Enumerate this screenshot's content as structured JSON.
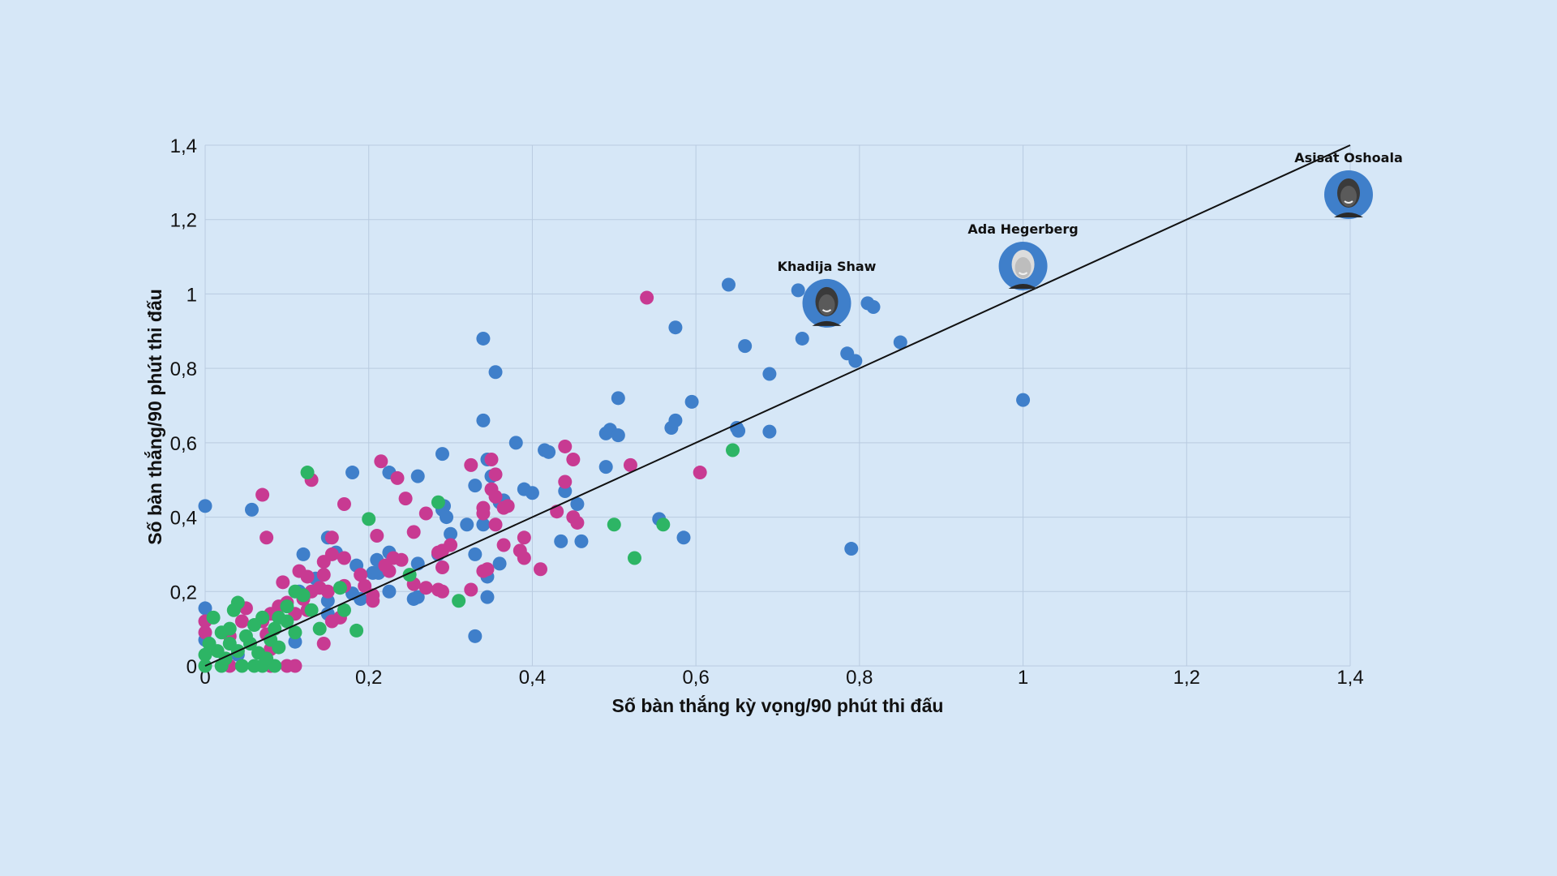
{
  "chart_data": {
    "type": "scatter",
    "title": "",
    "xlabel": "Số bàn thắng kỳ vọng/90 phút thi đấu",
    "ylabel": "Số bàn thắng/90 phút thi đấu",
    "xlim": [
      0,
      1.4
    ],
    "ylim": [
      0,
      1.4
    ],
    "grid": true,
    "x_ticks": [
      "0",
      "0,2",
      "0,4",
      "0,6",
      "0,8",
      "1",
      "1,2",
      "1,4"
    ],
    "y_ticks": [
      "0",
      "0,2",
      "0,4",
      "0,6",
      "0,8",
      "1",
      "1,2",
      "1,4"
    ],
    "reference_line": {
      "from": [
        0,
        0
      ],
      "to": [
        1.4,
        1.4
      ],
      "color": "#111111"
    },
    "colors": {
      "blue": "#3f7fca",
      "magenta": "#c83a92",
      "green": "#2db565",
      "background": "#d6e7f7",
      "grid": "#b9cbe0"
    },
    "series": [
      {
        "name": "blue",
        "color": "#3f7fca",
        "points": [
          [
            0,
            0.43
          ],
          [
            0.057,
            0.42
          ],
          [
            0,
            0.155
          ],
          [
            0.18,
            0.52
          ],
          [
            0.225,
            0.52
          ],
          [
            0.26,
            0.51
          ],
          [
            0.29,
            0.57
          ],
          [
            0.34,
            0.88
          ],
          [
            0.355,
            0.79
          ],
          [
            0.34,
            0.66
          ],
          [
            0.345,
            0.555
          ],
          [
            0.35,
            0.51
          ],
          [
            0.33,
            0.485
          ],
          [
            0.38,
            0.6
          ],
          [
            0.39,
            0.475
          ],
          [
            0.4,
            0.465
          ],
          [
            0.415,
            0.58
          ],
          [
            0.42,
            0.575
          ],
          [
            0.44,
            0.47
          ],
          [
            0.455,
            0.435
          ],
          [
            0.435,
            0.335
          ],
          [
            0.46,
            0.335
          ],
          [
            0.49,
            0.625
          ],
          [
            0.495,
            0.635
          ],
          [
            0.505,
            0.62
          ],
          [
            0.505,
            0.72
          ],
          [
            0.49,
            0.535
          ],
          [
            0.555,
            0.395
          ],
          [
            0.575,
            0.91
          ],
          [
            0.595,
            0.71
          ],
          [
            0.57,
            0.64
          ],
          [
            0.575,
            0.66
          ],
          [
            0.585,
            0.345
          ],
          [
            0.64,
            1.025
          ],
          [
            0.66,
            0.86
          ],
          [
            0.65,
            0.64
          ],
          [
            0.652,
            0.632
          ],
          [
            0.69,
            0.785
          ],
          [
            0.69,
            0.63
          ],
          [
            0.725,
            1.01
          ],
          [
            0.73,
            0.88
          ],
          [
            0.785,
            0.84
          ],
          [
            0.795,
            0.82
          ],
          [
            0.81,
            0.975
          ],
          [
            0.817,
            0.965
          ],
          [
            0.85,
            0.87
          ],
          [
            1.0,
            0.715
          ],
          [
            0.79,
            0.315
          ],
          [
            0.36,
            0.44
          ],
          [
            0.365,
            0.445
          ],
          [
            0.29,
            0.42
          ],
          [
            0.292,
            0.43
          ],
          [
            0.295,
            0.4
          ],
          [
            0.3,
            0.355
          ],
          [
            0.32,
            0.38
          ],
          [
            0.34,
            0.38
          ],
          [
            0.33,
            0.3
          ],
          [
            0.36,
            0.275
          ],
          [
            0.345,
            0.24
          ],
          [
            0.345,
            0.185
          ],
          [
            0.33,
            0.08
          ],
          [
            0.285,
            0.3
          ],
          [
            0.26,
            0.275
          ],
          [
            0.255,
            0.18
          ],
          [
            0.26,
            0.185
          ],
          [
            0.225,
            0.305
          ],
          [
            0.21,
            0.285
          ],
          [
            0.22,
            0.265
          ],
          [
            0.205,
            0.25
          ],
          [
            0.212,
            0.25
          ],
          [
            0.225,
            0.2
          ],
          [
            0.19,
            0.18
          ],
          [
            0.18,
            0.195
          ],
          [
            0.185,
            0.27
          ],
          [
            0.16,
            0.305
          ],
          [
            0.15,
            0.345
          ],
          [
            0.135,
            0.235
          ],
          [
            0.12,
            0.3
          ],
          [
            0.115,
            0.2
          ],
          [
            0.15,
            0.175
          ],
          [
            0.15,
            0.14
          ],
          [
            0.11,
            0.065
          ],
          [
            0,
            0.07
          ],
          [
            0.04,
            0.03
          ]
        ]
      },
      {
        "name": "magenta",
        "color": "#c83a92",
        "points": [
          [
            0.54,
            0.99
          ],
          [
            0.07,
            0.46
          ],
          [
            0.13,
            0.5
          ],
          [
            0.075,
            0.345
          ],
          [
            0.17,
            0.435
          ],
          [
            0.215,
            0.55
          ],
          [
            0.235,
            0.505
          ],
          [
            0.245,
            0.45
          ],
          [
            0.27,
            0.41
          ],
          [
            0.255,
            0.36
          ],
          [
            0.325,
            0.54
          ],
          [
            0.35,
            0.555
          ],
          [
            0.355,
            0.515
          ],
          [
            0.35,
            0.475
          ],
          [
            0.355,
            0.455
          ],
          [
            0.37,
            0.43
          ],
          [
            0.365,
            0.425
          ],
          [
            0.34,
            0.425
          ],
          [
            0.34,
            0.41
          ],
          [
            0.355,
            0.38
          ],
          [
            0.365,
            0.325
          ],
          [
            0.385,
            0.31
          ],
          [
            0.39,
            0.345
          ],
          [
            0.39,
            0.29
          ],
          [
            0.41,
            0.26
          ],
          [
            0.43,
            0.415
          ],
          [
            0.44,
            0.495
          ],
          [
            0.44,
            0.59
          ],
          [
            0.45,
            0.555
          ],
          [
            0.45,
            0.4
          ],
          [
            0.455,
            0.385
          ],
          [
            0.52,
            0.54
          ],
          [
            0.605,
            0.52
          ],
          [
            0.345,
            0.26
          ],
          [
            0.34,
            0.255
          ],
          [
            0.325,
            0.205
          ],
          [
            0.3,
            0.325
          ],
          [
            0.29,
            0.31
          ],
          [
            0.285,
            0.305
          ],
          [
            0.29,
            0.265
          ],
          [
            0.29,
            0.2
          ],
          [
            0.285,
            0.205
          ],
          [
            0.27,
            0.21
          ],
          [
            0.255,
            0.22
          ],
          [
            0.21,
            0.35
          ],
          [
            0.23,
            0.29
          ],
          [
            0.24,
            0.285
          ],
          [
            0.22,
            0.27
          ],
          [
            0.225,
            0.255
          ],
          [
            0.205,
            0.19
          ],
          [
            0.205,
            0.175
          ],
          [
            0.195,
            0.215
          ],
          [
            0.19,
            0.245
          ],
          [
            0.17,
            0.29
          ],
          [
            0.155,
            0.3
          ],
          [
            0.155,
            0.345
          ],
          [
            0.145,
            0.28
          ],
          [
            0.145,
            0.245
          ],
          [
            0.125,
            0.24
          ],
          [
            0.115,
            0.255
          ],
          [
            0.095,
            0.225
          ],
          [
            0.15,
            0.2
          ],
          [
            0.14,
            0.21
          ],
          [
            0.13,
            0.2
          ],
          [
            0.12,
            0.18
          ],
          [
            0.125,
            0.15
          ],
          [
            0.11,
            0.14
          ],
          [
            0.1,
            0.17
          ],
          [
            0.09,
            0.16
          ],
          [
            0.08,
            0.14
          ],
          [
            0.07,
            0.12
          ],
          [
            0.05,
            0.155
          ],
          [
            0.045,
            0.12
          ],
          [
            0.03,
            0.08
          ],
          [
            0,
            0.12
          ],
          [
            0,
            0.09
          ],
          [
            0.075,
            0.085
          ],
          [
            0.08,
            0.045
          ],
          [
            0.08,
            0
          ],
          [
            0.1,
            0
          ],
          [
            0.11,
            0
          ],
          [
            0.03,
            0
          ],
          [
            0.145,
            0.06
          ],
          [
            0.155,
            0.12
          ],
          [
            0.165,
            0.13
          ],
          [
            0.17,
            0.215
          ]
        ]
      },
      {
        "name": "green",
        "color": "#2db565",
        "points": [
          [
            0.125,
            0.52
          ],
          [
            0.2,
            0.395
          ],
          [
            0.285,
            0.44
          ],
          [
            0.25,
            0.245
          ],
          [
            0.31,
            0.175
          ],
          [
            0.5,
            0.38
          ],
          [
            0.56,
            0.38
          ],
          [
            0.525,
            0.29
          ],
          [
            0.645,
            0.58
          ],
          [
            0.185,
            0.095
          ],
          [
            0.165,
            0.21
          ],
          [
            0.17,
            0.15
          ],
          [
            0.14,
            0.1
          ],
          [
            0.13,
            0.15
          ],
          [
            0.12,
            0.19
          ],
          [
            0.11,
            0.2
          ],
          [
            0.1,
            0.16
          ],
          [
            0.1,
            0.12
          ],
          [
            0.09,
            0.13
          ],
          [
            0.085,
            0.1
          ],
          [
            0.08,
            0.07
          ],
          [
            0.07,
            0.13
          ],
          [
            0.06,
            0.11
          ],
          [
            0.055,
            0.06
          ],
          [
            0.05,
            0.08
          ],
          [
            0.04,
            0.17
          ],
          [
            0.035,
            0.15
          ],
          [
            0.03,
            0.1
          ],
          [
            0.03,
            0.06
          ],
          [
            0.02,
            0.09
          ],
          [
            0.015,
            0.04
          ],
          [
            0.01,
            0.13
          ],
          [
            0.005,
            0.06
          ],
          [
            0,
            0.03
          ],
          [
            0,
            0
          ],
          [
            0.02,
            0
          ],
          [
            0.045,
            0
          ],
          [
            0.06,
            0
          ],
          [
            0.07,
            0
          ],
          [
            0.085,
            0
          ],
          [
            0.04,
            0.04
          ],
          [
            0.065,
            0.035
          ],
          [
            0.09,
            0.05
          ],
          [
            0.11,
            0.09
          ],
          [
            0.075,
            0.02
          ],
          [
            0.025,
            0.02
          ]
        ]
      }
    ],
    "highlighted_players": [
      {
        "name": "Khadija Shaw",
        "x": 0.76,
        "y": 0.975
      },
      {
        "name": "Ada Hegerberg",
        "x": 1.0,
        "y": 1.075
      },
      {
        "name": "Asisat Oshoala",
        "x": 1.398,
        "y": 1.267
      }
    ]
  }
}
